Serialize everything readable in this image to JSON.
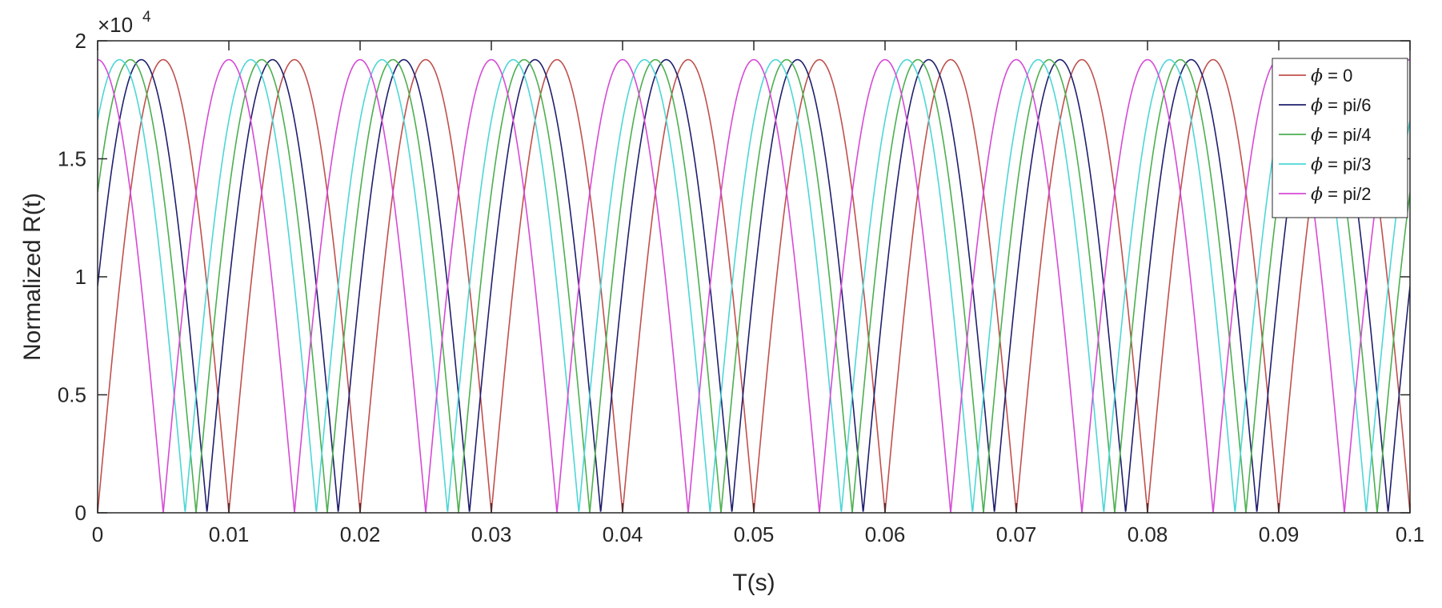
{
  "chart_data": {
    "type": "line",
    "xlabel": "T(s)",
    "ylabel": "Normalized R(t)",
    "y_exponent_label": "×10",
    "y_exponent_power": "4",
    "xlim": [
      0,
      0.1
    ],
    "ylim": [
      0,
      20000
    ],
    "x_ticks": [
      "0",
      "0.01",
      "0.02",
      "0.03",
      "0.04",
      "0.05",
      "0.06",
      "0.07",
      "0.08",
      "0.09",
      "0.1"
    ],
    "y_ticks": [
      "0",
      "0.5",
      "1",
      "1.5",
      "2"
    ],
    "grid": false,
    "legend_position": "top-right",
    "legend_symbol": "ϕ",
    "amplitude": 19200,
    "frequency_hz": 50,
    "model": "R(t) = 19200 · |sin(2π · 50 · t + ϕ)|",
    "series": [
      {
        "name": "= 0",
        "phase": 0,
        "color": "#c0504d"
      },
      {
        "name": "= pi/6",
        "phase": 0.5235988,
        "color": "#1f1f6e"
      },
      {
        "name": "= pi/4",
        "phase": 0.7853982,
        "color": "#4caf50"
      },
      {
        "name": "= pi/3",
        "phase": 1.0471976,
        "color": "#4dd6d6"
      },
      {
        "name": "= pi/2",
        "phase": 1.5707963,
        "color": "#d64ad6"
      }
    ]
  }
}
